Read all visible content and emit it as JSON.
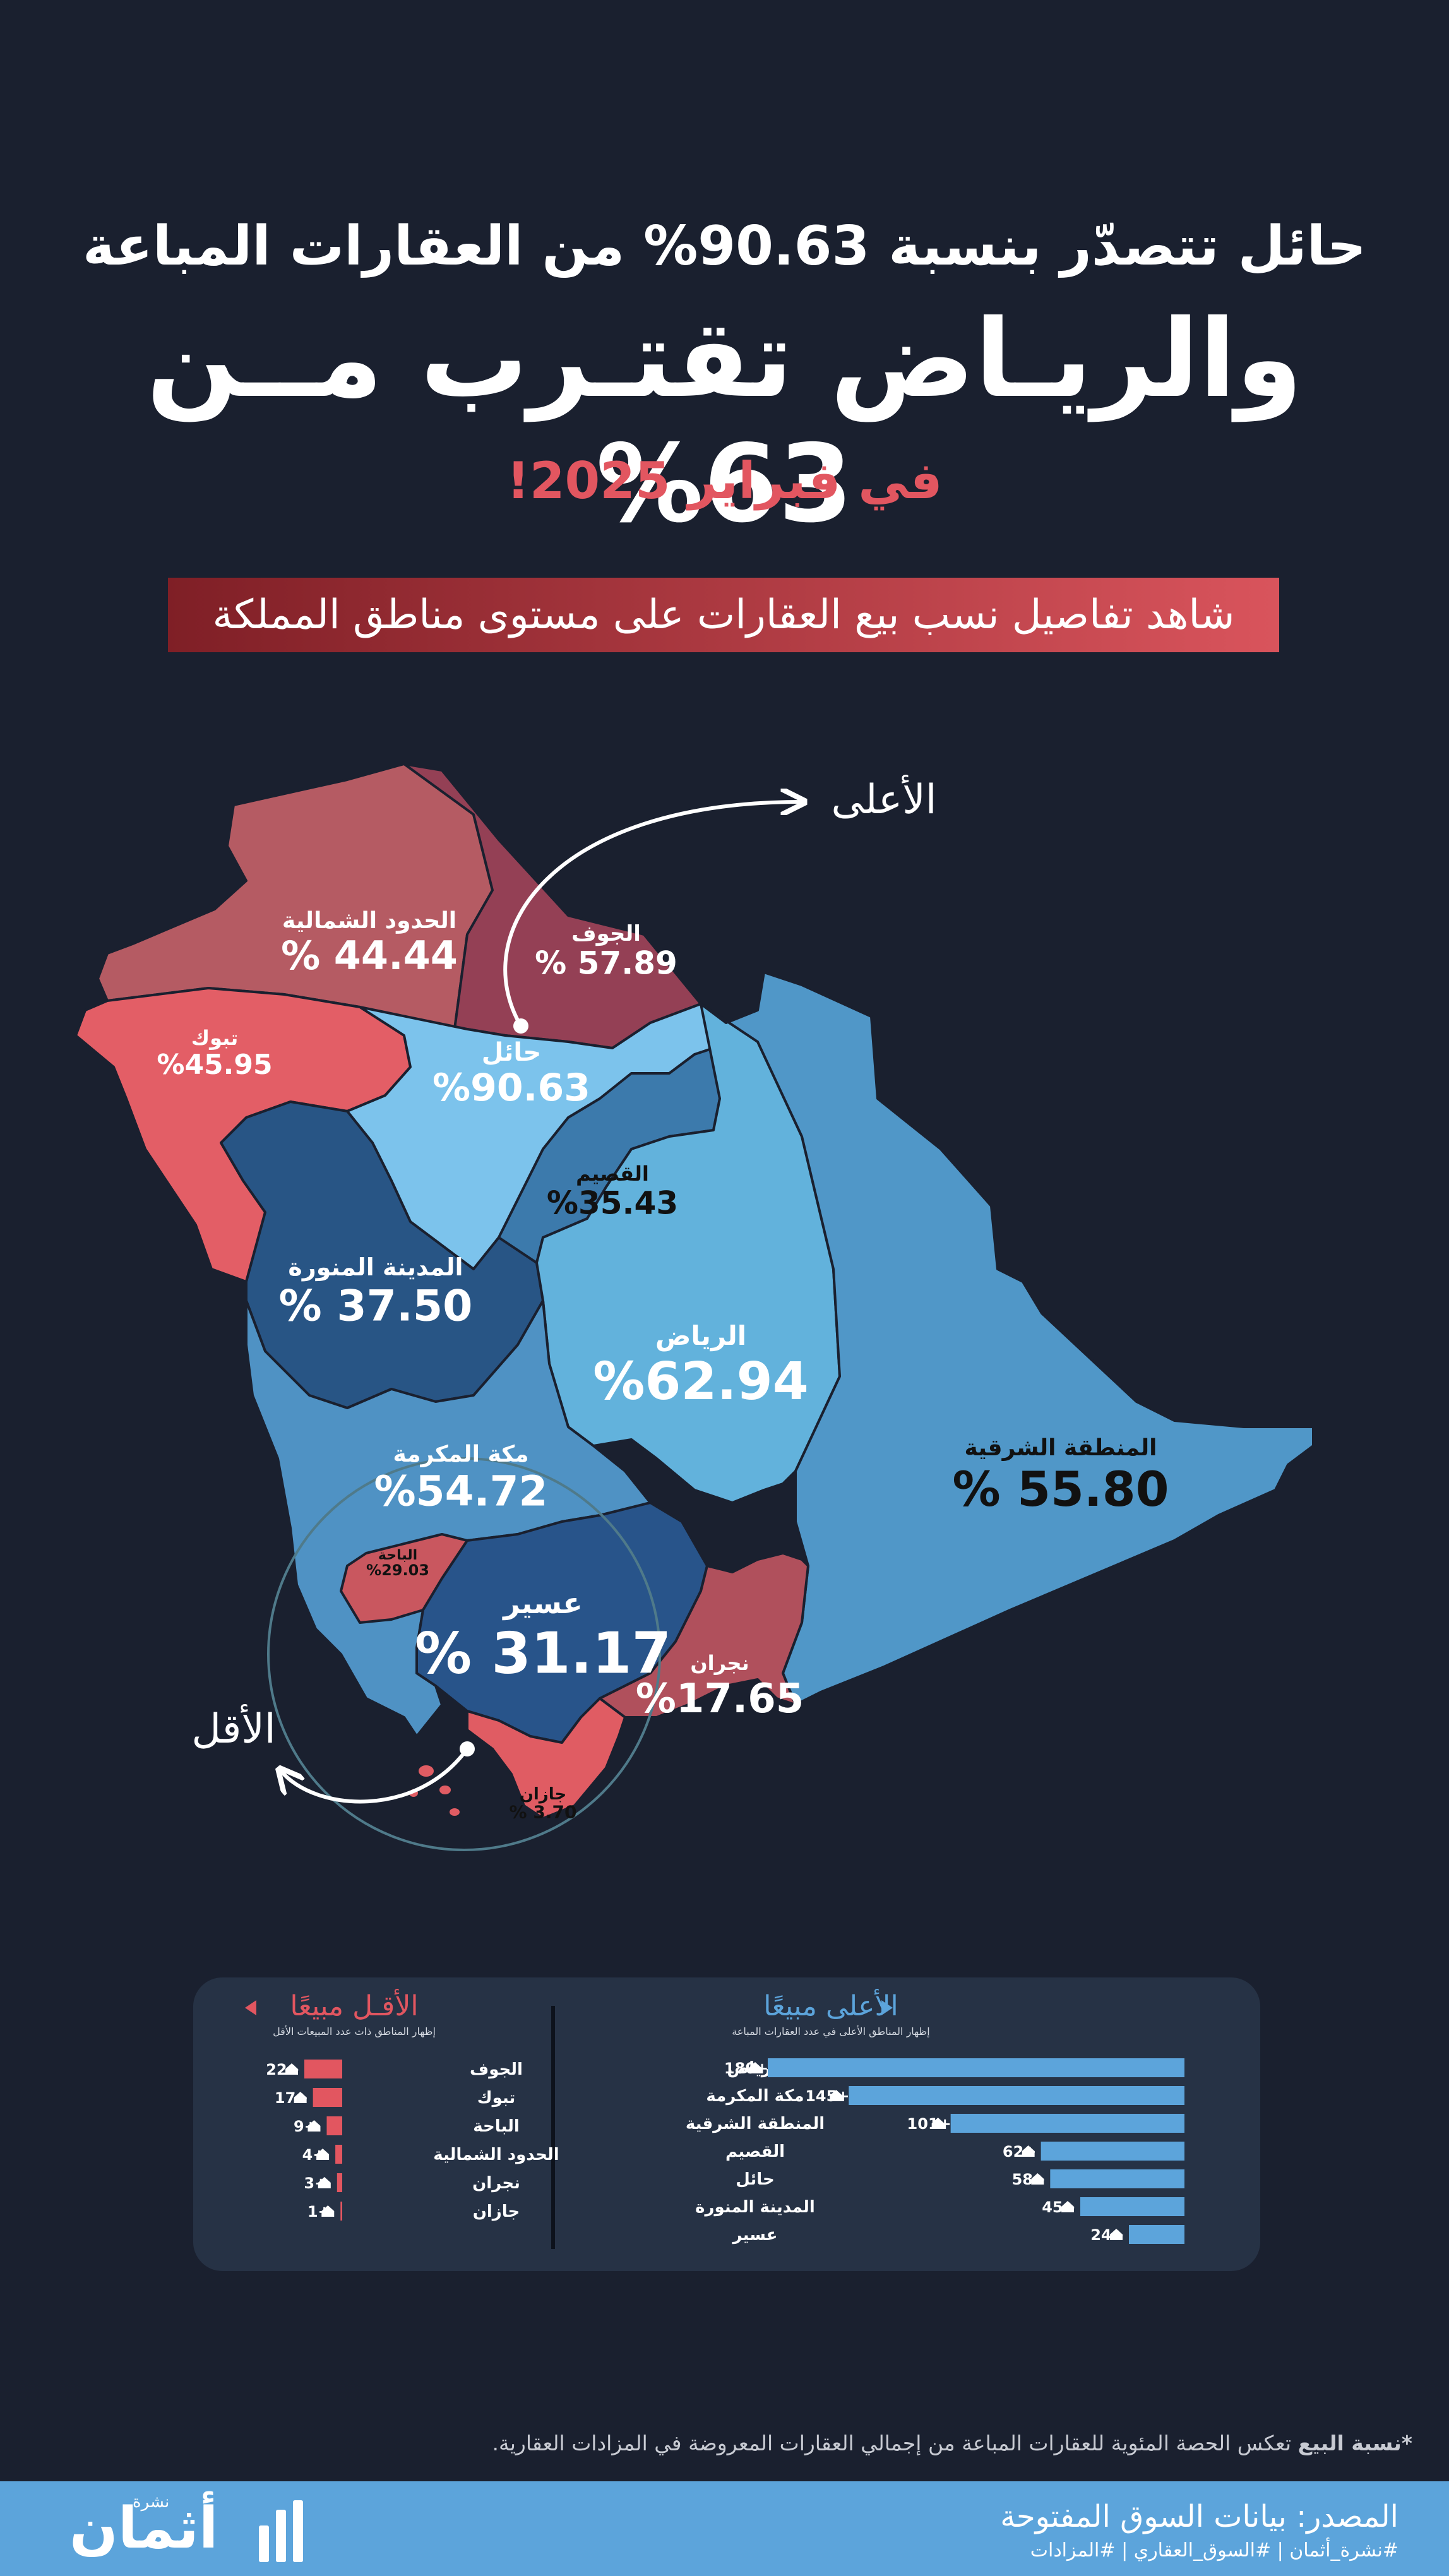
{
  "header": {
    "line1": "حائل تتصدّر بنسبة 90.63% من العقارات المباعة",
    "line2": "والريـاض تقتـرب مــن 63%",
    "line3": "في فبراير 2025!",
    "banner": "شاهد تفاصيل نسب بيع العقارات على مستوى مناطق المملكة"
  },
  "colors": {
    "background": "#1a202f",
    "accent_red": "#e25660",
    "accent_blue": "#5ca4db"
  },
  "callouts": {
    "highest": "الأعلى",
    "lowest": "الأقل"
  },
  "chart_data": [
    {
      "type": "map",
      "unit": "%",
      "regions": [
        {
          "name": "حائل",
          "label": "حائل",
          "value_text": "%90.63",
          "value": 90.63,
          "color": "#7cc3ec"
        },
        {
          "name": "الرياض",
          "label": "الرياض",
          "value_text": "%62.94",
          "value": 62.94,
          "color": "#62b2dc"
        },
        {
          "name": "الجوف",
          "label": "الجوف",
          "value_text": "% 57.89",
          "value": 57.89,
          "color": "#b55b63"
        },
        {
          "name": "المنطقة الشرقية",
          "label": "المنطقة الشرقية",
          "value_text": "% 55.80",
          "value": 55.8,
          "color": "#5097c8"
        },
        {
          "name": "مكة المكرمة",
          "label": "مكة المكرمة",
          "value_text": "%54.72",
          "value": 54.72,
          "color": "#4f92c4"
        },
        {
          "name": "تبوك",
          "label": "تبوك",
          "value_text": "%45.95",
          "value": 45.95,
          "color": "#e35e66"
        },
        {
          "name": "الحدود الشمالية",
          "label": "الحدود الشمالية",
          "value_text": "% 44.44",
          "value": 44.44,
          "color": "#944055"
        },
        {
          "name": "المدينة المنورة",
          "label": "المدينة المنورة",
          "value_text": "% 37.50",
          "value": 37.5,
          "color": "#285585"
        },
        {
          "name": "القصيم",
          "label": "القصيم",
          "value_text": "%35.43",
          "value": 35.43,
          "color": "#3c7aac"
        },
        {
          "name": "عسير",
          "label": "عسير",
          "value_text": "% 31.17",
          "value": 31.17,
          "color": "#28548a"
        },
        {
          "name": "الباحة",
          "label": "الباحة",
          "value_text": "%29.03",
          "value": 29.03,
          "color": "#c9575f"
        },
        {
          "name": "نجران",
          "label": "نجران",
          "value_text": "%17.65",
          "value": 17.65,
          "color": "#b0505c"
        },
        {
          "name": "جازان",
          "label": "جازان",
          "value_text": "% 3.70",
          "value": 3.7,
          "color": "#e05c63"
        }
      ]
    },
    {
      "type": "bar",
      "title": "الأعلى مبيعًا",
      "subtitle": "إظهار المناطق الأعلى في عدد العقارات المباعة",
      "categories": [
        "الرياض",
        "مكة المكرمة",
        "المنطقة الشرقية",
        "القصيم",
        "حائل",
        "المدينة المنورة",
        "عسير"
      ],
      "values": [
        180,
        145,
        101,
        62,
        58,
        45,
        24
      ],
      "value_labels": [
        "180+",
        "145+",
        "101+",
        "62+",
        "58+",
        "45+",
        "24+"
      ],
      "color": "#5ca4db"
    },
    {
      "type": "bar",
      "title": "الأقـل مبيعًا",
      "subtitle": "إظهار المناطق ذات عدد المبيعات الأقل",
      "categories": [
        "الجوف",
        "تبوك",
        "الباحة",
        "الحدود الشمالية",
        "نجران",
        "جازان"
      ],
      "values": [
        22,
        17,
        9,
        4,
        3,
        1
      ],
      "value_labels": [
        "22+",
        "17+",
        "9+",
        "4+",
        "3+",
        "1+"
      ],
      "color": "#e25660"
    }
  ],
  "footnote": {
    "bold": "*نسبة البيع",
    "text": " تعكس الحصة المئوية للعقارات المباعة من إجمالي العقارات المعروضة في المزادات العقارية."
  },
  "footer": {
    "source": "المصدر: بيانات السوق المفتوحة",
    "tags": "#نشرة_أثمان | #السوق_العقاري | #المزادات",
    "brand": "أثمان",
    "brand_small": "نشرة"
  }
}
